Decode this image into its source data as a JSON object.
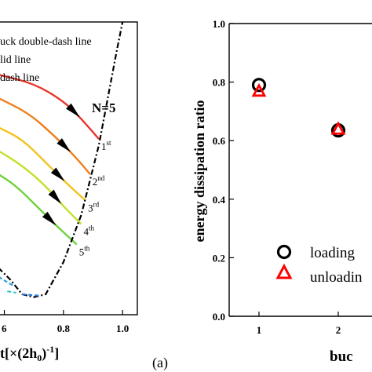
{
  "chart_data": [
    {
      "type": "line",
      "panel": "left",
      "annotation": "N=5",
      "legend_lines": [
        "uck double-dash line",
        "lid line",
        "dash line"
      ],
      "xlabel": "t[×(2h₀)⁻¹]",
      "x_ticks": [
        "0.6",
        "0.8",
        "1.0"
      ],
      "xlim": [
        0.58,
        1.05
      ],
      "ylim": [
        0,
        1
      ],
      "series": [
        {
          "name": "1st",
          "color": "#e8352b",
          "points": [
            [
              0.58,
              0.82
            ],
            [
              0.7,
              0.79
            ],
            [
              0.8,
              0.73
            ],
            [
              0.86,
              0.67
            ],
            [
              0.92,
              0.6
            ]
          ]
        },
        {
          "name": "2nd",
          "color": "#f07f1e",
          "points": [
            [
              0.58,
              0.74
            ],
            [
              0.68,
              0.69
            ],
            [
              0.76,
              0.62
            ],
            [
              0.84,
              0.54
            ],
            [
              0.89,
              0.48
            ]
          ]
        },
        {
          "name": "3rd",
          "color": "#f3c322",
          "points": [
            [
              0.58,
              0.64
            ],
            [
              0.66,
              0.6
            ],
            [
              0.74,
              0.52
            ],
            [
              0.82,
              0.44
            ],
            [
              0.875,
              0.39
            ]
          ]
        },
        {
          "name": "4th",
          "color": "#c6df2c",
          "points": [
            [
              0.58,
              0.56
            ],
            [
              0.66,
              0.51
            ],
            [
              0.74,
              0.44
            ],
            [
              0.8,
              0.37
            ],
            [
              0.86,
              0.31
            ]
          ]
        },
        {
          "name": "5th",
          "color": "#6fd23a",
          "points": [
            [
              0.58,
              0.48
            ],
            [
              0.64,
              0.44
            ],
            [
              0.72,
              0.36
            ],
            [
              0.78,
              0.3
            ],
            [
              0.845,
              0.24
            ]
          ]
        }
      ],
      "envelope": [
        [
          0.58,
          0.16
        ],
        [
          0.62,
          0.12
        ],
        [
          0.66,
          0.07
        ],
        [
          0.7,
          0.06
        ],
        [
          0.74,
          0.07
        ],
        [
          0.8,
          0.18
        ],
        [
          0.86,
          0.34
        ],
        [
          0.92,
          0.58
        ],
        [
          0.98,
          0.9
        ],
        [
          1.0,
          1.0
        ]
      ],
      "curve_labels": [
        "1st",
        "2nd",
        "3rd",
        "4th",
        "5th"
      ]
    },
    {
      "type": "scatter",
      "panel": "right",
      "ylabel": "energy dissipation ratio",
      "xlabel": "buc",
      "ylim": [
        0.0,
        1.0
      ],
      "y_ticks": [
        0.0,
        0.2,
        0.4,
        0.6,
        0.8,
        1.0
      ],
      "x_ticks": [
        1,
        2
      ],
      "series": [
        {
          "name": "loading",
          "marker": "circle",
          "color": "#000000",
          "points": [
            [
              1,
              0.79
            ],
            [
              2,
              0.635
            ]
          ]
        },
        {
          "name": "unloadin",
          "marker": "triangle",
          "color": "#ff0000",
          "points": [
            [
              1,
              0.77
            ],
            [
              2,
              0.64
            ]
          ]
        }
      ]
    }
  ],
  "panel_label": "(a)"
}
